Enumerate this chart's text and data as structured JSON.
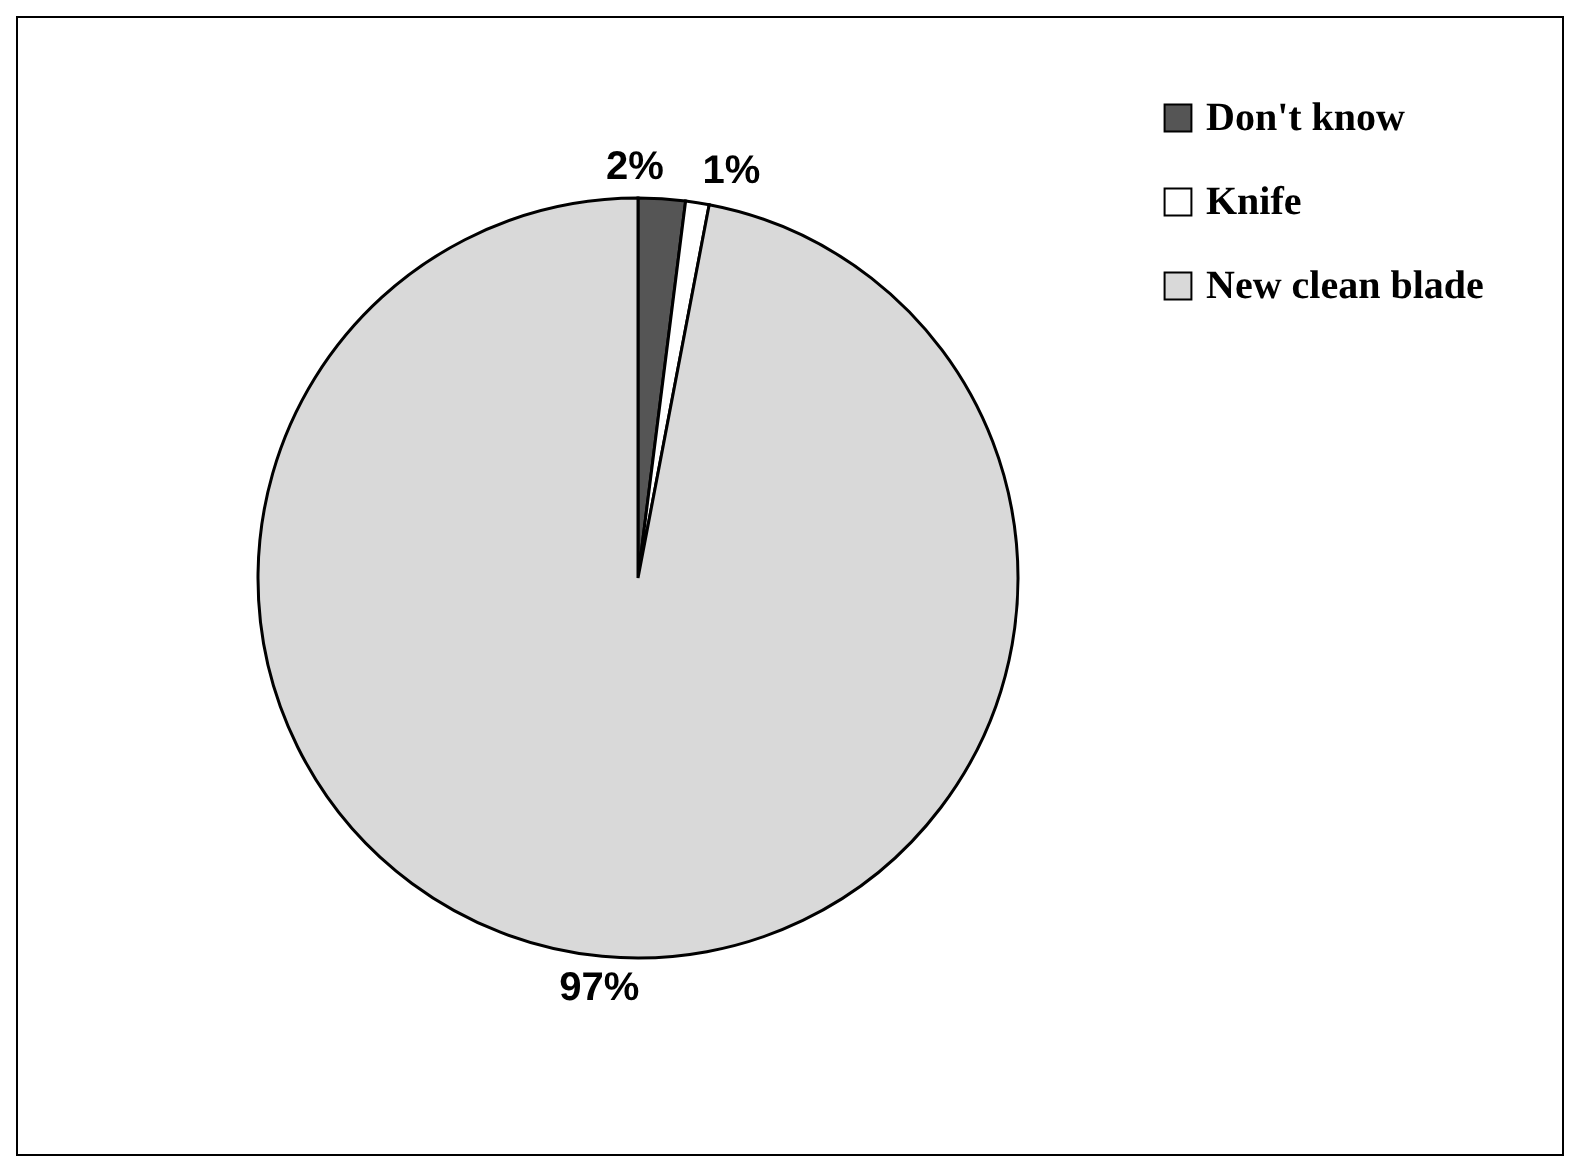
{
  "chart_data": {
    "type": "pie",
    "categories": [
      "Don't know",
      "Knife",
      "New clean blade"
    ],
    "values": [
      2,
      1,
      97
    ],
    "colors": [
      "#555555",
      "#ffffff",
      "#d9d9d9"
    ],
    "value_labels": [
      "2%",
      "1%",
      "97%"
    ],
    "legend": "right"
  }
}
